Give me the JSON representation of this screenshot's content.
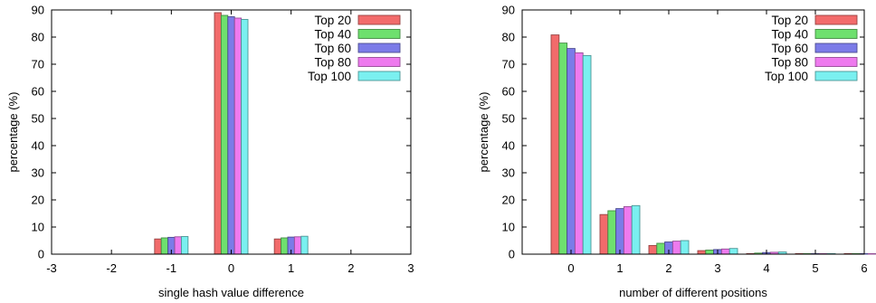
{
  "chart_data": [
    {
      "type": "bar",
      "xlabel": "single hash value difference",
      "ylabel": "percentage (%)",
      "xlim": [
        -3,
        3
      ],
      "ylim": [
        0,
        90
      ],
      "xticks": [
        "-3",
        "-2",
        "-1",
        "0",
        "1",
        "2",
        "3"
      ],
      "yticks": [
        "0",
        "10",
        "20",
        "30",
        "40",
        "50",
        "60",
        "70",
        "80",
        "90"
      ],
      "categories": [
        -1,
        0,
        1
      ],
      "legend_position": "top-right",
      "grid": false,
      "series": [
        {
          "name": "Top 20",
          "color": "#f26b6b",
          "values": [
            5.6,
            89.0,
            5.6
          ]
        },
        {
          "name": "Top 40",
          "color": "#6ee06e",
          "values": [
            6.0,
            88.0,
            6.0
          ]
        },
        {
          "name": "Top 60",
          "color": "#7b7be8",
          "values": [
            6.2,
            87.5,
            6.3
          ]
        },
        {
          "name": "Top 80",
          "color": "#ee7aee",
          "values": [
            6.4,
            87.0,
            6.4
          ]
        },
        {
          "name": "Top 100",
          "color": "#7af0f0",
          "values": [
            6.5,
            86.5,
            6.6
          ]
        }
      ]
    },
    {
      "type": "bar",
      "xlabel": "number of different positions",
      "ylabel": "percentage (%)",
      "xlim": [
        -1,
        6
      ],
      "ylim": [
        0,
        90
      ],
      "xticks": [
        "0",
        "1",
        "2",
        "3",
        "4",
        "5",
        "6"
      ],
      "yticks": [
        "0",
        "10",
        "20",
        "30",
        "40",
        "50",
        "60",
        "70",
        "80",
        "90"
      ],
      "categories": [
        0,
        1,
        2,
        3,
        4,
        5,
        6
      ],
      "legend_position": "top-right",
      "grid": false,
      "series": [
        {
          "name": "Top 20",
          "color": "#f26b6b",
          "values": [
            80.8,
            14.6,
            3.2,
            1.3,
            0.2,
            0.1,
            0.0
          ]
        },
        {
          "name": "Top 40",
          "color": "#6ee06e",
          "values": [
            77.8,
            16.0,
            4.0,
            1.5,
            0.4,
            0.1,
            0.0
          ]
        },
        {
          "name": "Top 60",
          "color": "#7b7be8",
          "values": [
            75.8,
            16.8,
            4.5,
            1.7,
            0.6,
            0.2,
            0.0
          ]
        },
        {
          "name": "Top 80",
          "color": "#ee7aee",
          "values": [
            74.2,
            17.5,
            4.8,
            1.9,
            0.7,
            0.2,
            0.0
          ]
        },
        {
          "name": "Top 100",
          "color": "#7af0f0",
          "values": [
            73.2,
            17.9,
            5.0,
            2.1,
            0.8,
            0.2,
            0.1
          ]
        }
      ]
    }
  ]
}
